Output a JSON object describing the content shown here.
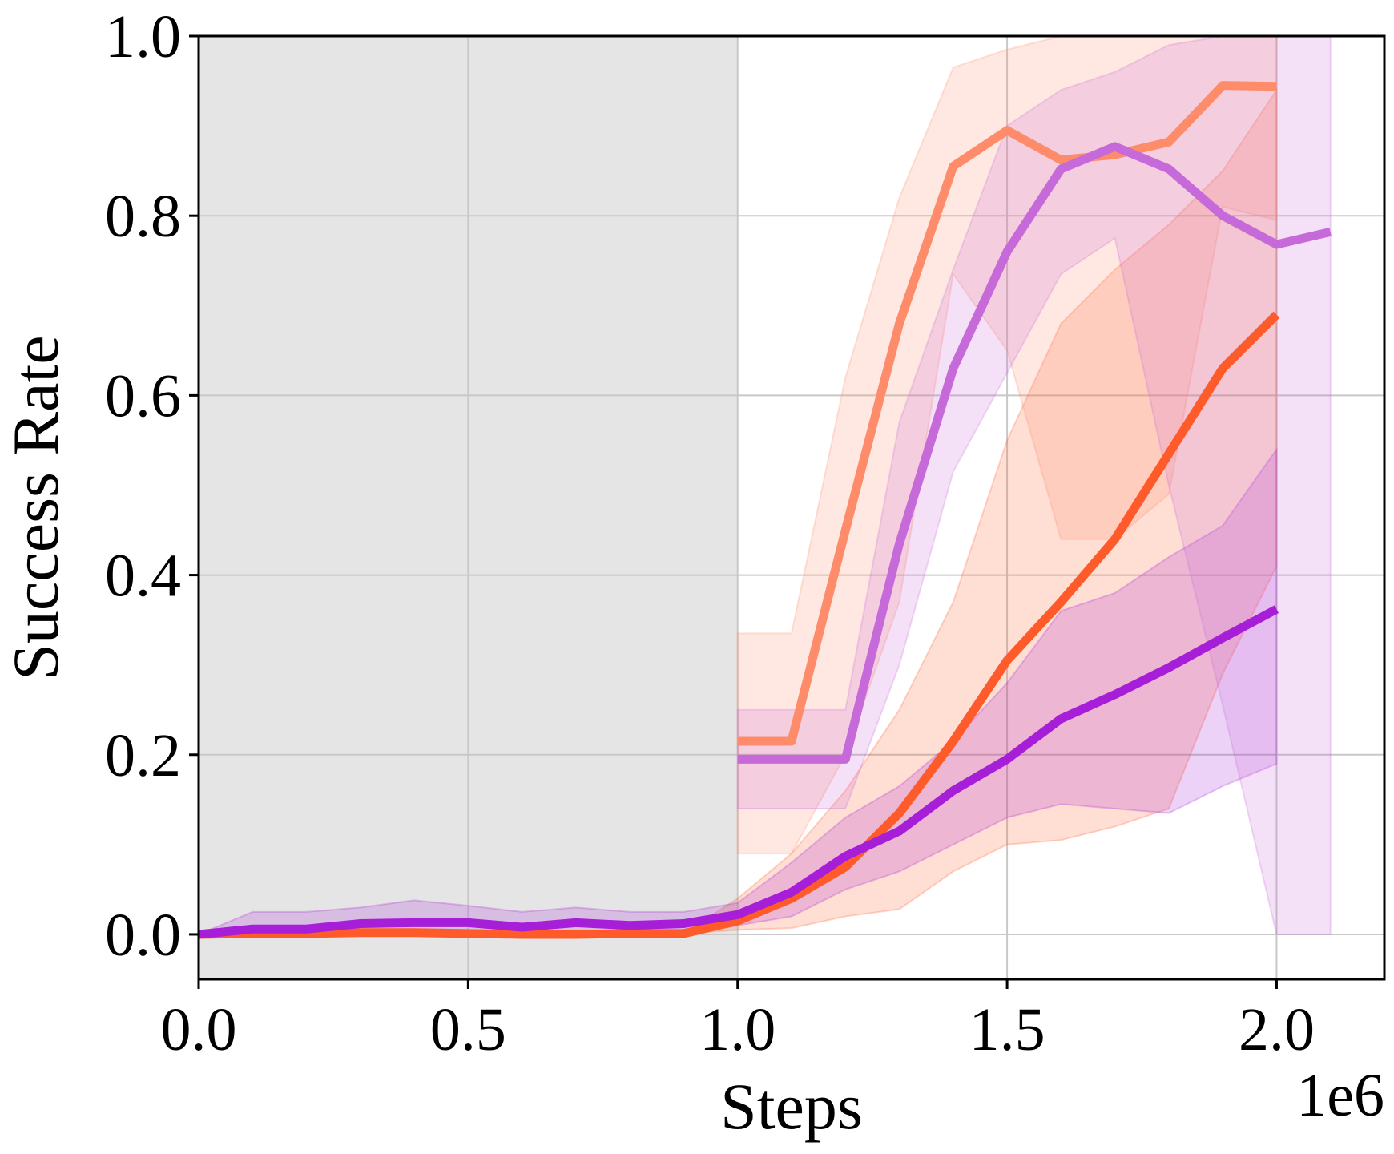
{
  "chart_data": {
    "type": "line",
    "xlabel": "Steps",
    "ylabel": "Success Rate",
    "x_offset_label": "1e6",
    "xlim": [
      0,
      2.2
    ],
    "ylim": [
      -0.05,
      1.0
    ],
    "x_ticks": [
      "0.0",
      "0.5",
      "1.0",
      "1.5",
      "2.0"
    ],
    "y_ticks": [
      "0.0",
      "0.2",
      "0.4",
      "0.6",
      "0.8",
      "1.0"
    ],
    "grid": true,
    "shaded_region": {
      "x": [
        0,
        1.0
      ],
      "color": "#e5e5e5"
    },
    "series": [
      {
        "color": "#ff5a2a",
        "x": [
          0,
          0.1,
          0.2,
          0.3,
          0.4,
          0.5,
          0.6,
          0.7,
          0.8,
          0.9,
          1.0,
          1.1,
          1.2,
          1.3,
          1.4,
          1.5,
          1.6,
          1.7,
          1.8,
          1.9,
          2.0
        ],
        "y": [
          0,
          0.001,
          0.001,
          0.002,
          0.002,
          0.001,
          0,
          0,
          0.001,
          0.001,
          0.015,
          0.04,
          0.075,
          0.135,
          0.215,
          0.305,
          0.37,
          0.44,
          0.535,
          0.63,
          0.69
        ],
        "upper": [
          0,
          0.001,
          0.001,
          0.002,
          0.002,
          0.001,
          0,
          0,
          0.001,
          0.001,
          0.04,
          0.09,
          0.16,
          0.25,
          0.37,
          0.55,
          0.68,
          0.74,
          0.79,
          0.85,
          0.94
        ],
        "lower": [
          0,
          0.001,
          0.001,
          0.002,
          0.002,
          0.001,
          0,
          0,
          0.001,
          0.001,
          0.005,
          0.007,
          0.02,
          0.028,
          0.07,
          0.1,
          0.105,
          0.12,
          0.14,
          0.29,
          0.41
        ]
      },
      {
        "color": "#a71ed8",
        "x": [
          0,
          0.1,
          0.2,
          0.3,
          0.4,
          0.5,
          0.6,
          0.7,
          0.8,
          0.9,
          1.0,
          1.1,
          1.2,
          1.3,
          1.4,
          1.5,
          1.6,
          1.7,
          1.8,
          1.9,
          2.0
        ],
        "y": [
          0,
          0.006,
          0.006,
          0.012,
          0.013,
          0.013,
          0.008,
          0.013,
          0.01,
          0.012,
          0.022,
          0.047,
          0.087,
          0.115,
          0.16,
          0.195,
          0.24,
          0.267,
          0.297,
          0.33,
          0.362
        ],
        "upper": [
          0,
          0.025,
          0.025,
          0.03,
          0.038,
          0.032,
          0.025,
          0.03,
          0.025,
          0.025,
          0.035,
          0.08,
          0.13,
          0.165,
          0.215,
          0.28,
          0.36,
          0.38,
          0.42,
          0.455,
          0.54
        ],
        "lower": [
          0,
          0,
          0,
          0,
          0,
          0,
          0,
          0,
          0,
          0,
          0.01,
          0.02,
          0.05,
          0.07,
          0.1,
          0.13,
          0.145,
          0.14,
          0.135,
          0.165,
          0.19
        ]
      },
      {
        "color": "#fe8c6a",
        "x": [
          1.0,
          1.1,
          1.2,
          1.3,
          1.4,
          1.5,
          1.6,
          1.7,
          1.8,
          1.9,
          2.0
        ],
        "y": [
          0.215,
          0.215,
          0.45,
          0.68,
          0.855,
          0.895,
          0.862,
          0.868,
          0.882,
          0.945,
          0.944
        ],
        "upper": [
          0.335,
          0.335,
          0.62,
          0.82,
          0.965,
          0.985,
          1.0,
          1.0,
          1.0,
          1.0,
          1.0
        ],
        "lower": [
          0.09,
          0.09,
          0.2,
          0.37,
          0.735,
          0.65,
          0.44,
          0.44,
          0.49,
          0.81,
          0.795
        ]
      },
      {
        "color": "#c76ad9",
        "x": [
          1.0,
          1.1,
          1.2,
          1.3,
          1.4,
          1.5,
          1.6,
          1.7,
          1.8,
          1.9,
          2.0,
          2.1
        ],
        "y": [
          0.195,
          0.195,
          0.195,
          0.435,
          0.63,
          0.76,
          0.852,
          0.877,
          0.852,
          0.8,
          0.768,
          0.782
        ],
        "upper": [
          0.25,
          0.25,
          0.25,
          0.57,
          0.74,
          0.9,
          0.94,
          0.96,
          0.99,
          1.0,
          1.0,
          1.0
        ],
        "lower": [
          0.14,
          0.14,
          0.14,
          0.3,
          0.515,
          0.625,
          0.735,
          0.775,
          0.5,
          0.255,
          0,
          0
        ]
      }
    ]
  }
}
